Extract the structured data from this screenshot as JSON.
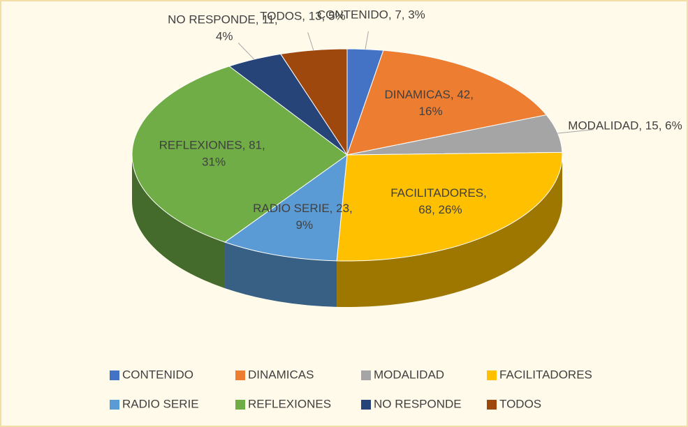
{
  "chart_data": {
    "type": "pie3d",
    "categories": [
      "CONTENIDO",
      "DINAMICAS",
      "MODALIDAD",
      "FACILITADORES",
      "RADIO SERIE",
      "REFLEXIONES",
      "NO RESPONDE",
      "TODOS"
    ],
    "values": [
      7,
      42,
      15,
      68,
      23,
      81,
      11,
      13
    ],
    "value_labels": [
      "CONTENIDO, 7, 3%",
      "DINAMICAS, 42, 16%",
      "MODALIDAD, 15, 6%",
      "FACILITADORES, 68, 26%",
      "RADIO SERIE, 23, 9%",
      "REFLEXIONES, 81, 31%",
      "NO RESPONDE, 11, 4%",
      "TODOS, 13, 5%"
    ],
    "colors": [
      "#4472c4",
      "#ed7d31",
      "#a5a5a5",
      "#ffc000",
      "#5b9bd5",
      "#70ad47",
      "#264478",
      "#9e480e"
    ],
    "legend": "bottom"
  }
}
